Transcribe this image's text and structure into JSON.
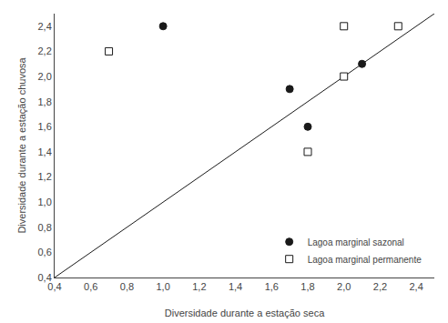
{
  "chart_data": {
    "type": "scatter",
    "xlabel": "Diversidade durante a estação seca",
    "ylabel": "Diversidade durante a estação chuvosa",
    "xlim": [
      0.4,
      2.5
    ],
    "ylim": [
      0.4,
      2.5
    ],
    "xticks": [
      {
        "value": 0.4,
        "label": "0,4"
      },
      {
        "value": 0.6,
        "label": "0,6"
      },
      {
        "value": 0.8,
        "label": "0,8"
      },
      {
        "value": 1.0,
        "label": "1,0"
      },
      {
        "value": 1.2,
        "label": "1,2"
      },
      {
        "value": 1.4,
        "label": "1,4"
      },
      {
        "value": 1.6,
        "label": "1,6"
      },
      {
        "value": 1.8,
        "label": "1,8"
      },
      {
        "value": 2.0,
        "label": "2,0"
      },
      {
        "value": 2.2,
        "label": "2,2"
      },
      {
        "value": 2.4,
        "label": "2,4"
      }
    ],
    "yticks": [
      {
        "value": 0.4,
        "label": "0,4"
      },
      {
        "value": 0.6,
        "label": "0,6"
      },
      {
        "value": 0.8,
        "label": "0,8"
      },
      {
        "value": 1.0,
        "label": "1,0"
      },
      {
        "value": 1.2,
        "label": "1,2"
      },
      {
        "value": 1.4,
        "label": "1,4"
      },
      {
        "value": 1.6,
        "label": "1,6"
      },
      {
        "value": 1.8,
        "label": "1,8"
      },
      {
        "value": 2.0,
        "label": "2,0"
      },
      {
        "value": 2.2,
        "label": "2,2"
      },
      {
        "value": 2.4,
        "label": "2,4"
      }
    ],
    "grid": false,
    "legend": "lower right",
    "series": [
      {
        "type": "line",
        "color": "#1a1a1a",
        "x": [
          0.4,
          2.5
        ],
        "values": [
          0.4,
          2.5
        ]
      },
      {
        "name": "Lagoa marginal sazonal",
        "marker": "circle",
        "color": "#1a1a1a",
        "x": [
          1.0,
          1.7,
          1.8,
          2.1
        ],
        "values": [
          2.4,
          1.9,
          1.6,
          2.1
        ]
      },
      {
        "name": "Lagoa marginal permanente",
        "marker": "square",
        "color": "#ffffff",
        "x": [
          0.7,
          1.8,
          2.0,
          2.0,
          2.3
        ],
        "values": [
          2.2,
          1.4,
          2.4,
          2.0,
          2.4
        ]
      }
    ]
  }
}
